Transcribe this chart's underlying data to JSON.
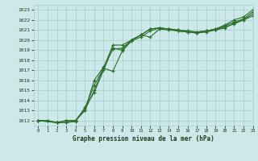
{
  "title": "Graphe pression niveau de la mer (hPa)",
  "bg_color": "#cce8e8",
  "grid_color": "#aacccc",
  "line_color": "#2d6e2d",
  "text_color": "#1a3a1a",
  "xlim": [
    -0.5,
    23
  ],
  "ylim": [
    1011.5,
    1023.5
  ],
  "yticks": [
    1012,
    1013,
    1014,
    1015,
    1016,
    1017,
    1018,
    1019,
    1020,
    1021,
    1022,
    1023
  ],
  "xticks": [
    0,
    1,
    2,
    3,
    4,
    5,
    6,
    7,
    8,
    9,
    10,
    11,
    12,
    13,
    14,
    15,
    16,
    17,
    18,
    19,
    20,
    21,
    22,
    23
  ],
  "line1_x": [
    0,
    1,
    2,
    3,
    4,
    5,
    6,
    7,
    8,
    9,
    10,
    11,
    12,
    13,
    14,
    15,
    16,
    17,
    18,
    19,
    20,
    21,
    22,
    23
  ],
  "line1": [
    1012.0,
    1012.0,
    1011.8,
    1011.8,
    1011.9,
    1013.3,
    1014.8,
    1017.0,
    1019.2,
    1019.0,
    1020.0,
    1020.5,
    1020.3,
    1021.1,
    1021.0,
    1020.9,
    1020.8,
    1020.7,
    1020.8,
    1021.0,
    1021.3,
    1021.6,
    1022.0,
    1022.6
  ],
  "line2_x": [
    0,
    1,
    2,
    3,
    4,
    5,
    6,
    7,
    8,
    9,
    10,
    11,
    12,
    13,
    14,
    15,
    16,
    17,
    18,
    19,
    20,
    21,
    22,
    23
  ],
  "line2": [
    1012.0,
    1012.0,
    1011.8,
    1011.8,
    1012.0,
    1013.0,
    1015.0,
    1017.2,
    1019.5,
    1019.5,
    1020.0,
    1020.5,
    1021.1,
    1021.2,
    1021.1,
    1020.9,
    1020.8,
    1020.7,
    1020.9,
    1021.1,
    1021.4,
    1021.8,
    1022.1,
    1022.8
  ],
  "line3_x": [
    0,
    2,
    3,
    4,
    5,
    6,
    7,
    8,
    9,
    10,
    11,
    12,
    13,
    14,
    15,
    16,
    17,
    18,
    19,
    20,
    21,
    22,
    23
  ],
  "line3": [
    1012.0,
    1011.8,
    1012.0,
    1012.0,
    1013.2,
    1015.5,
    1017.2,
    1016.9,
    1018.9,
    1019.9,
    1020.3,
    1020.9,
    1021.2,
    1021.1,
    1021.0,
    1020.9,
    1020.8,
    1020.9,
    1021.0,
    1021.2,
    1021.7,
    1022.0,
    1022.4
  ],
  "line4_x": [
    0,
    2,
    3,
    4,
    5,
    6,
    7,
    8,
    9,
    10,
    11,
    12,
    13,
    14,
    15,
    16,
    17,
    18,
    19,
    20,
    21,
    22,
    23
  ],
  "line4": [
    1012.0,
    1011.8,
    1012.0,
    1012.0,
    1013.0,
    1016.0,
    1017.3,
    1019.1,
    1019.2,
    1020.0,
    1020.5,
    1021.1,
    1021.2,
    1021.1,
    1021.0,
    1020.9,
    1020.8,
    1020.9,
    1021.1,
    1021.5,
    1022.0,
    1022.3,
    1023.0
  ]
}
